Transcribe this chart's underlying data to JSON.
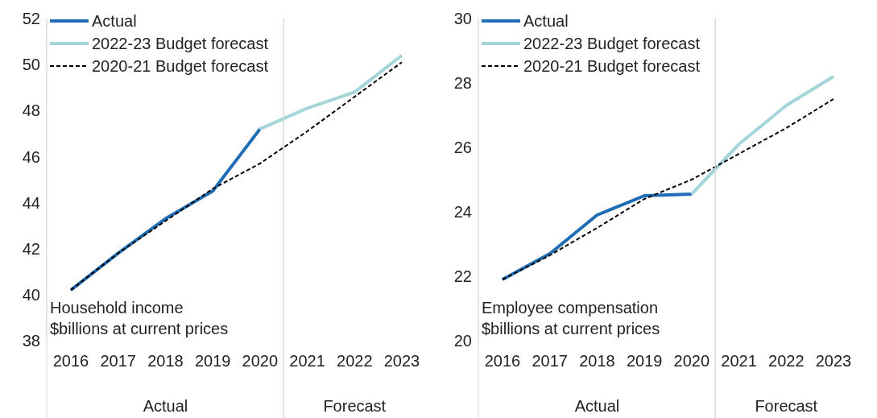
{
  "chart_data": [
    {
      "type": "line",
      "categories": [
        "2016",
        "2017",
        "2018",
        "2019",
        "2020",
        "2021",
        "2022",
        "2023"
      ],
      "ylabel": "Household income\n$billions at current prices",
      "ylim": [
        38,
        52
      ],
      "yticks": [
        38,
        40,
        42,
        44,
        46,
        48,
        50,
        52
      ],
      "grid": false,
      "legend": "top left",
      "annotations": [
        "Actual",
        "Forecast"
      ],
      "series": [
        {
          "name": "Actual",
          "color": "#1f6db5",
          "line_style": "solid",
          "values": [
            40.2,
            41.8,
            43.3,
            44.5,
            47.2,
            null,
            null,
            null
          ]
        },
        {
          "name": "2022-23 Budget forecast",
          "color": "#a3d5d9",
          "line_style": "solid",
          "values": [
            null,
            null,
            null,
            null,
            47.2,
            48.1,
            48.8,
            50.4
          ]
        },
        {
          "name": "2020-21 Budget forecast",
          "color": "#000000",
          "line_style": "dashed",
          "values": [
            40.2,
            41.8,
            43.2,
            44.6,
            45.7,
            47.1,
            48.6,
            50.1
          ]
        }
      ]
    },
    {
      "type": "line",
      "categories": [
        "2016",
        "2017",
        "2018",
        "2019",
        "2020",
        "2021",
        "2022",
        "2023"
      ],
      "ylabel": "Employee compensation\n$billions at current prices",
      "ylim": [
        20,
        30
      ],
      "yticks": [
        20,
        22,
        24,
        26,
        28,
        30
      ],
      "grid": false,
      "legend": "top left",
      "annotations": [
        "Actual",
        "Forecast"
      ],
      "series": [
        {
          "name": "Actual",
          "color": "#1f6db5",
          "line_style": "solid",
          "values": [
            21.9,
            22.7,
            23.9,
            24.5,
            24.55,
            null,
            null,
            null
          ]
        },
        {
          "name": "2022-23 Budget forecast",
          "color": "#a3d5d9",
          "line_style": "solid",
          "values": [
            null,
            null,
            null,
            null,
            24.55,
            26.1,
            27.3,
            28.2
          ]
        },
        {
          "name": "2020-21 Budget forecast",
          "color": "#000000",
          "line_style": "dashed",
          "values": [
            21.9,
            22.65,
            23.5,
            24.4,
            25.0,
            25.8,
            26.6,
            27.5
          ]
        }
      ]
    }
  ]
}
